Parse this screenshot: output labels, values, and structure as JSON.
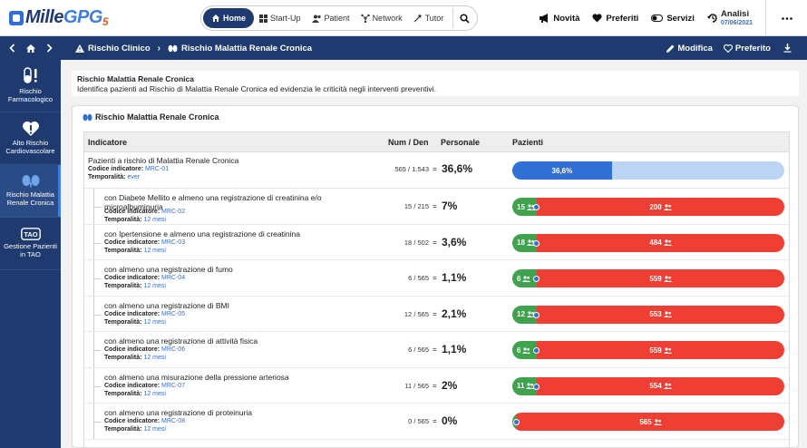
{
  "app": {
    "logo": {
      "mille": "Mille",
      "gpg": "GPG",
      "five": "5"
    },
    "nav": {
      "home": "Home",
      "startup": "Start-Up",
      "patient": "Patient",
      "network": "Network",
      "tutor": "Tutor"
    },
    "links": {
      "novita": "Novità",
      "preferiti": "Preferiti",
      "servizi": "Servizi",
      "analisi": "Analisi",
      "analisi_date": "07/06/2021"
    }
  },
  "breadcrumb": {
    "items": [
      "Rischio Clinico",
      "Rischio Malattia Renale Cronica"
    ],
    "actions": {
      "modifica": "Modifica",
      "preferito": "Preferito"
    }
  },
  "sidebar": {
    "items": [
      {
        "label_1": "Rischio",
        "label_2": "Farmacologico"
      },
      {
        "label_1": "Alto Rischio",
        "label_2": "Cardiovascolare"
      },
      {
        "label_1": "Rischio Malattia",
        "label_2": "Renale Cronica"
      },
      {
        "label_1": "Gestione Pazienti",
        "label_2": "in TAO",
        "badge": "TAO"
      }
    ]
  },
  "description": {
    "title": "Rischio Malattia Renale Cronica",
    "text": "Identifica pazienti ad Rischio di Malattia Renale Cronica ed evidenzia le criticità negli interventi preventivi."
  },
  "card": {
    "title": "Rischio Malattia Renale Cronica"
  },
  "table": {
    "headers": {
      "indicatore": "Indicatore",
      "numden": "Num / Den",
      "personale": "Personale",
      "pazienti": "Pazienti"
    },
    "labels": {
      "codice": "Codice indicatore:",
      "temporalita": "Temporalità:",
      "eq": "="
    },
    "main": {
      "title": "Pazienti a rischio di Malattia Renale Cronica",
      "code": "MRC-01",
      "temporalita": "ever",
      "numden": "565 / 1.543",
      "pct": "36,6%",
      "bar_label": "36,6%",
      "fraction": 0.366
    },
    "rows": [
      {
        "title": "con Diabete Mellito e almeno una registrazione di creatinina e/o microalbuminuria",
        "code": "MRC-02",
        "temporalita": "12 mesi",
        "numden": "15 / 215",
        "pct": "7%",
        "num": "15",
        "den": "200",
        "fraction": 0.07
      },
      {
        "title": "con Ipertensione e almeno una registrazione di creatinina",
        "code": "MRC-03",
        "temporalita": "12 mesi",
        "numden": "18 / 502",
        "pct": "3,6%",
        "num": "18",
        "den": "484",
        "fraction": 0.036
      },
      {
        "title": "con almeno una registrazione di fumo",
        "code": "MRC-04",
        "temporalita": "12 mesi",
        "numden": "6 / 565",
        "pct": "1,1%",
        "num": "6",
        "den": "559",
        "fraction": 0.011
      },
      {
        "title": "con almeno una registrazione di BMI",
        "code": "MRC-05",
        "temporalita": "12 mesi",
        "numden": "12 / 565",
        "pct": "2,1%",
        "num": "12",
        "den": "553",
        "fraction": 0.021
      },
      {
        "title": "con almeno una registrazione di attività fisica",
        "code": "MRC-06",
        "temporalita": "12 mesi",
        "numden": "6 / 565",
        "pct": "1,1%",
        "num": "6",
        "den": "559",
        "fraction": 0.011
      },
      {
        "title": "con almeno una misurazione della pressione arteriosa",
        "code": "MRC-07",
        "temporalita": "12 mesi",
        "numden": "11 / 565",
        "pct": "2%",
        "num": "11",
        "den": "554",
        "fraction": 0.02
      },
      {
        "title": "con almeno una registrazione di proteinuria",
        "code": "MRC-08",
        "temporalita": "12 mesi",
        "numden": "0 / 565",
        "pct": "0%",
        "num": "",
        "den": "565",
        "fraction": 0
      }
    ]
  },
  "colors": {
    "primary": "#1e3a6e",
    "accent": "#2f6fd6",
    "green": "#3fa34d",
    "red": "#ef3e33",
    "lightblue": "#bcd5f5"
  }
}
